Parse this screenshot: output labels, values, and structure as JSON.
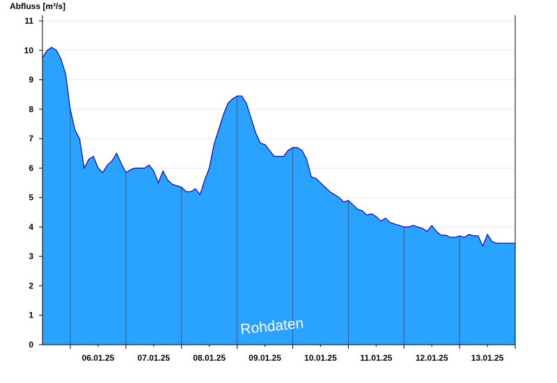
{
  "chart_data": {
    "type": "area",
    "ylabel": "Abfluss [m³/s]",
    "ylim": [
      0,
      11
    ],
    "yticks": [
      0,
      1,
      2,
      3,
      4,
      5,
      6,
      7,
      8,
      9,
      10,
      11
    ],
    "xlim": [
      "05.01.25 12:00",
      "13.01.25 24:00"
    ],
    "xtick_labels": [
      "06.01.25",
      "07.01.25",
      "08.01.25",
      "09.01.25",
      "10.01.25",
      "11.01.25",
      "12.01.25",
      "13.01.25"
    ],
    "watermark": "Rohdaten",
    "grid": "horizontal",
    "fill_color": "#29a3ff",
    "line_color": "#0000cc",
    "series": [
      {
        "x": [
          "05.01.25 12:00",
          "05.01.25 14:00",
          "05.01.25 16:00",
          "05.01.25 18:00",
          "05.01.25 20:00",
          "05.01.25 22:00",
          "06.01.25 00:00",
          "06.01.25 02:00",
          "06.01.25 04:00",
          "06.01.25 06:00",
          "06.01.25 08:00",
          "06.01.25 10:00",
          "06.01.25 12:00",
          "06.01.25 14:00",
          "06.01.25 16:00",
          "06.01.25 18:00",
          "06.01.25 20:00",
          "06.01.25 22:00",
          "07.01.25 00:00",
          "07.01.25 02:00",
          "07.01.25 04:00",
          "07.01.25 06:00",
          "07.01.25 08:00",
          "07.01.25 10:00",
          "07.01.25 12:00",
          "07.01.25 14:00",
          "07.01.25 16:00",
          "07.01.25 18:00",
          "07.01.25 20:00",
          "07.01.25 22:00",
          "08.01.25 00:00",
          "08.01.25 02:00",
          "08.01.25 04:00",
          "08.01.25 06:00",
          "08.01.25 08:00",
          "08.01.25 10:00",
          "08.01.25 12:00",
          "08.01.25 14:00",
          "08.01.25 16:00",
          "08.01.25 18:00",
          "08.01.25 20:00",
          "08.01.25 22:00",
          "09.01.25 00:00",
          "09.01.25 02:00",
          "09.01.25 04:00",
          "09.01.25 06:00",
          "09.01.25 08:00",
          "09.01.25 10:00",
          "09.01.25 12:00",
          "09.01.25 14:00",
          "09.01.25 16:00",
          "09.01.25 18:00",
          "09.01.25 20:00",
          "09.01.25 22:00",
          "10.01.25 00:00",
          "10.01.25 02:00",
          "10.01.25 04:00",
          "10.01.25 06:00",
          "10.01.25 08:00",
          "10.01.25 10:00",
          "10.01.25 12:00",
          "10.01.25 14:00",
          "10.01.25 16:00",
          "10.01.25 18:00",
          "10.01.25 20:00",
          "10.01.25 22:00",
          "11.01.25 00:00",
          "11.01.25 02:00",
          "11.01.25 04:00",
          "11.01.25 06:00",
          "11.01.25 08:00",
          "11.01.25 10:00",
          "11.01.25 12:00",
          "11.01.25 14:00",
          "11.01.25 16:00",
          "11.01.25 18:00",
          "11.01.25 20:00",
          "11.01.25 22:00",
          "12.01.25 00:00",
          "12.01.25 02:00",
          "12.01.25 04:00",
          "12.01.25 06:00",
          "12.01.25 08:00",
          "12.01.25 10:00",
          "12.01.25 12:00",
          "12.01.25 14:00",
          "12.01.25 16:00",
          "12.01.25 18:00",
          "12.01.25 20:00",
          "12.01.25 22:00",
          "13.01.25 00:00",
          "13.01.25 02:00",
          "13.01.25 04:00",
          "13.01.25 06:00",
          "13.01.25 08:00",
          "13.01.25 10:00",
          "13.01.25 12:00",
          "13.01.25 14:00",
          "13.01.25 16:00",
          "13.01.25 18:00",
          "13.01.25 20:00",
          "13.01.25 22:00",
          "13.01.25 24:00"
        ],
        "y": [
          9.75,
          10.0,
          10.1,
          10.0,
          9.7,
          9.2,
          8.0,
          7.3,
          7.0,
          6.0,
          6.3,
          6.4,
          6.0,
          5.85,
          6.1,
          6.25,
          6.5,
          6.15,
          5.85,
          5.95,
          6.0,
          6.0,
          6.0,
          6.1,
          5.9,
          5.5,
          5.9,
          5.6,
          5.45,
          5.4,
          5.35,
          5.2,
          5.2,
          5.3,
          5.1,
          5.6,
          6.0,
          6.8,
          7.3,
          7.8,
          8.2,
          8.35,
          8.45,
          8.45,
          8.2,
          7.7,
          7.2,
          6.85,
          6.8,
          6.6,
          6.4,
          6.4,
          6.4,
          6.6,
          6.7,
          6.7,
          6.6,
          6.3,
          5.7,
          5.65,
          5.5,
          5.35,
          5.2,
          5.1,
          5.0,
          4.85,
          4.9,
          4.75,
          4.6,
          4.55,
          4.4,
          4.45,
          4.35,
          4.2,
          4.3,
          4.15,
          4.1,
          4.05,
          4.0,
          4.0,
          4.05,
          4.0,
          3.95,
          3.85,
          4.05,
          3.85,
          3.72,
          3.72,
          3.65,
          3.65,
          3.7,
          3.65,
          3.75,
          3.7,
          3.7,
          3.35,
          3.75,
          3.5,
          3.45,
          3.45,
          3.45,
          3.45,
          3.45
        ]
      }
    ]
  }
}
